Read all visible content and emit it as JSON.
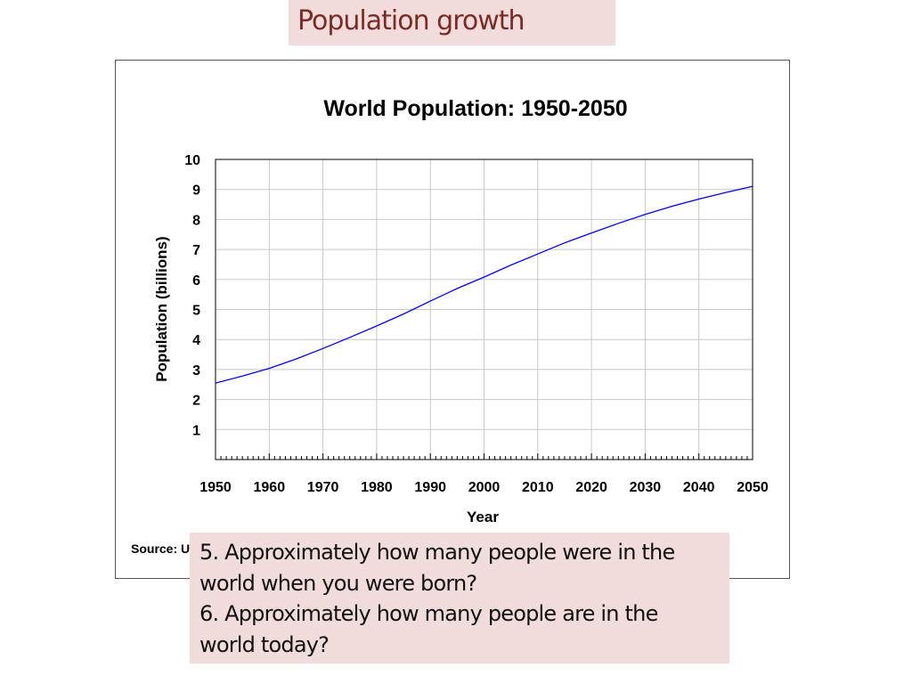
{
  "slide": {
    "title": "Population growth"
  },
  "source_label": "Source: U",
  "questions": [
    "5. Approximately how many people were in the",
    "world when you were born?",
    "6. Approximately how many people are in the",
    "world today?"
  ],
  "colors": {
    "accent_background": "#f2dcdb",
    "title_text": "#7b2a24",
    "series_line": "#0000ff",
    "grid": "#c8c8c8"
  },
  "chart_data": {
    "type": "line",
    "title": "World Population: 1950-2050",
    "xlabel": "Year",
    "ylabel": "Population (billions)",
    "xlim": [
      1950,
      2050
    ],
    "ylim": [
      0,
      10
    ],
    "x_ticks": [
      1950,
      1960,
      1970,
      1980,
      1990,
      2000,
      2010,
      2020,
      2030,
      2040,
      2050
    ],
    "y_ticks": [
      1,
      2,
      3,
      4,
      5,
      6,
      7,
      8,
      9,
      10
    ],
    "grid": true,
    "legend": "none",
    "series": [
      {
        "x": [
          1950,
          1955,
          1960,
          1965,
          1970,
          1975,
          1980,
          1985,
          1990,
          1995,
          2000,
          2005,
          2010,
          2015,
          2020,
          2025,
          2030,
          2035,
          2040,
          2045,
          2050
        ],
        "y": [
          2.55,
          2.78,
          3.04,
          3.35,
          3.7,
          4.07,
          4.45,
          4.85,
          5.28,
          5.7,
          6.08,
          6.48,
          6.85,
          7.22,
          7.55,
          7.87,
          8.17,
          8.44,
          8.68,
          8.9,
          9.1
        ]
      }
    ]
  }
}
